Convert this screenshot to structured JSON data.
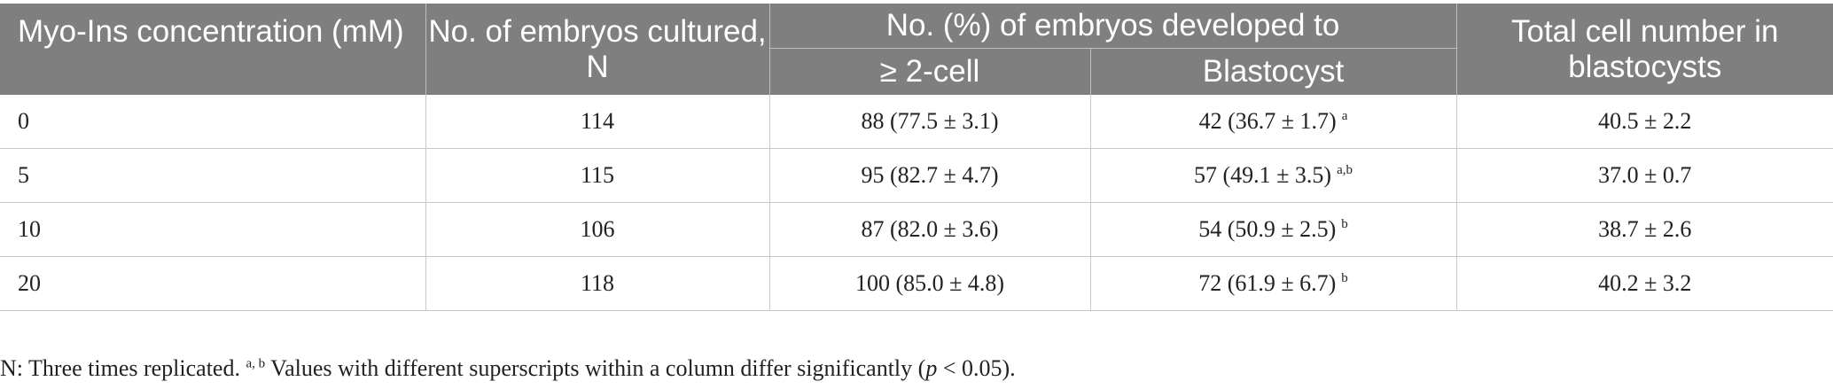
{
  "headers": {
    "col1": "Myo-Ins concentration (mM)",
    "col2": "No. of embryos cultured, N",
    "group": "No. (%) of embryos developed to",
    "sub1": "≥ 2-cell",
    "sub2": "Blastocyst",
    "col5": "Total cell number in blastocysts"
  },
  "rows": [
    {
      "conc": "0",
      "n": "114",
      "two_cell": "88 (77.5 ± 3.1)",
      "blast": "42 (36.7 ± 1.7)",
      "blast_sup": "a",
      "total": "40.5 ± 2.2"
    },
    {
      "conc": "5",
      "n": "115",
      "two_cell": "95 (82.7 ± 4.7)",
      "blast": "57 (49.1 ± 3.5)",
      "blast_sup": "a,b",
      "total": "37.0 ± 0.7"
    },
    {
      "conc": "10",
      "n": "106",
      "two_cell": "87 (82.0 ± 3.6)",
      "blast": "54 (50.9 ± 2.5)",
      "blast_sup": "b",
      "total": "38.7 ± 2.6"
    },
    {
      "conc": "20",
      "n": "118",
      "two_cell": "100 (85.0 ± 4.8)",
      "blast": "72 (61.9 ± 6.7)",
      "blast_sup": "b",
      "total": "40.2 ± 3.2"
    }
  ],
  "footnote": {
    "part1": "N: Three times replicated. ",
    "sup": "a, b",
    "part2": " Values with different superscripts within a column differ significantly (",
    "p": "p",
    "part3": " < 0.05)."
  }
}
